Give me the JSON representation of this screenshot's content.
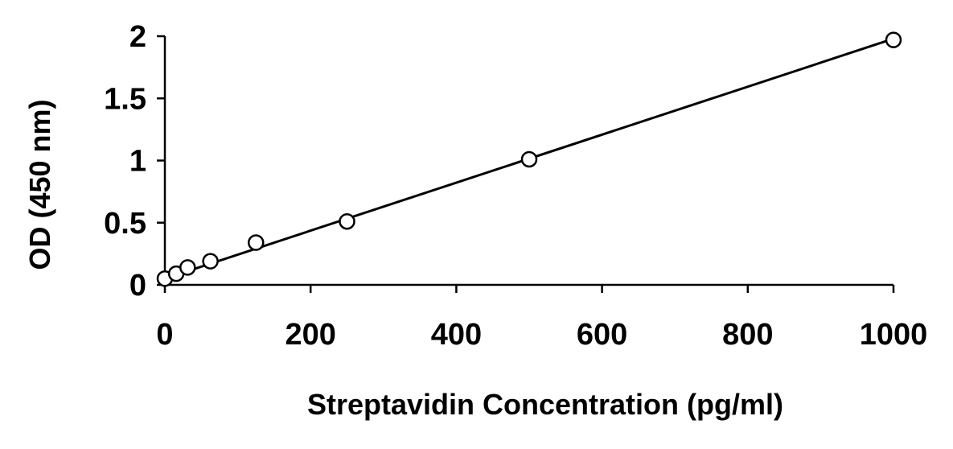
{
  "chart_data": {
    "type": "scatter",
    "xlabel": "Streptavidin Concentration (pg/ml)",
    "ylabel": "OD (450 nm)",
    "xlim": [
      0,
      1000
    ],
    "ylim": [
      0,
      2
    ],
    "x_ticks": [
      0,
      200,
      400,
      600,
      800,
      1000
    ],
    "y_ticks": [
      0,
      0.5,
      1,
      1.5,
      2
    ],
    "x_tick_labels": [
      "0",
      "200",
      "400",
      "600",
      "800",
      "1000"
    ],
    "y_tick_labels": [
      "0",
      "0.5",
      "1",
      "1.5",
      "2"
    ],
    "grid": false,
    "series": [
      {
        "marker": "open-circle",
        "x": [
          0,
          15.6,
          31.25,
          62.5,
          125,
          250,
          500,
          1000
        ],
        "y": [
          0.05,
          0.09,
          0.14,
          0.19,
          0.34,
          0.51,
          1.01,
          1.97
        ]
      }
    ],
    "trendline": {
      "type": "linear",
      "x": [
        0,
        1000
      ],
      "y": [
        0.05,
        1.98
      ]
    }
  }
}
